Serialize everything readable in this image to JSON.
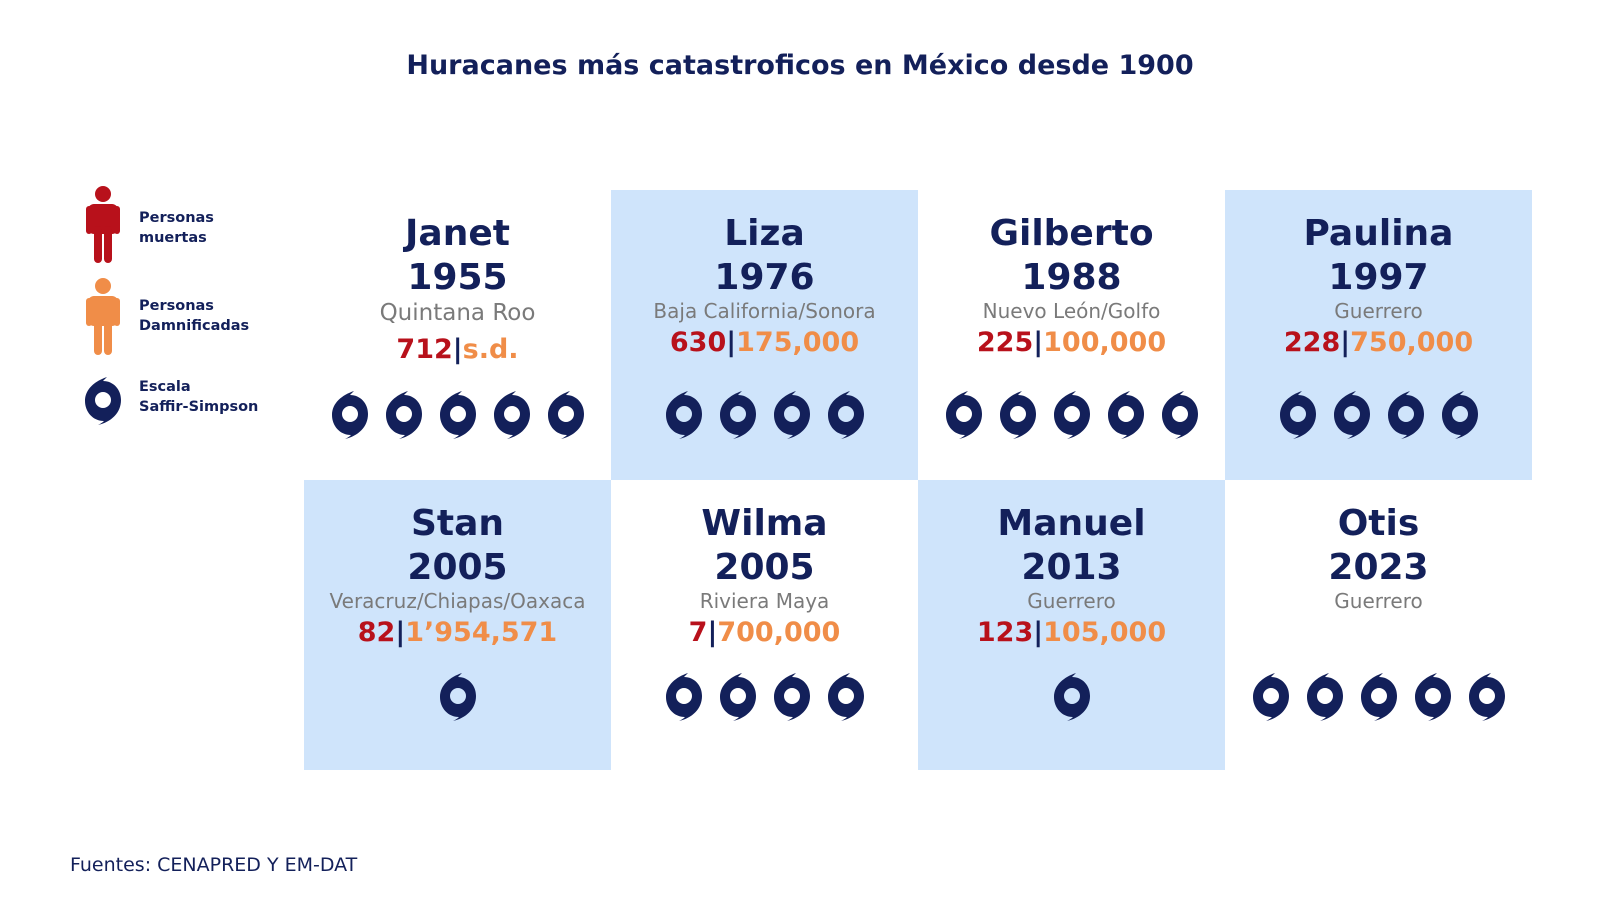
{
  "title": "Huracanes más catastroficos en México desde 1900",
  "legend": {
    "deaths_label": [
      "Personas",
      "muertas"
    ],
    "affected_label": [
      "Personas",
      "Damnificadas"
    ],
    "scale_label": [
      "Escala",
      "Saffir-Simpson"
    ]
  },
  "colors": {
    "navy": "#13205a",
    "deaths": "#b8111b",
    "affected": "#f08d48",
    "shade": "#cfe4fb",
    "place": "#7a7a7a"
  },
  "hurricanes": [
    {
      "name": "Janet",
      "year": "1955",
      "place": "Quintana Roo",
      "deaths": "712",
      "separator": "|",
      "affected": "s.d.",
      "category": 5,
      "shaded": false
    },
    {
      "name": "Liza",
      "year": "1976",
      "place": "Baja California/Sonora",
      "deaths": "630",
      "separator": "|",
      "affected": "175,000",
      "category": 4,
      "shaded": true
    },
    {
      "name": "Gilberto",
      "year": "1988",
      "place": "Nuevo León/Golfo",
      "deaths": "225",
      "separator": "|",
      "affected": "100,000",
      "category": 5,
      "shaded": false
    },
    {
      "name": "Paulina",
      "year": "1997",
      "place": "Guerrero",
      "deaths": "228",
      "separator": "|",
      "affected": "750,000",
      "category": 4,
      "shaded": true
    },
    {
      "name": "Stan",
      "year": "2005",
      "place": "Veracruz/Chiapas/Oaxaca",
      "deaths": "82",
      "separator": "|",
      "affected": "1’954,571",
      "category": 1,
      "shaded": true
    },
    {
      "name": "Wilma",
      "year": "2005",
      "place": "Riviera Maya",
      "deaths": "7",
      "separator": "|",
      "affected": "700,000",
      "category": 4,
      "shaded": false
    },
    {
      "name": "Manuel",
      "year": "2013",
      "place": "Guerrero",
      "deaths": "123",
      "separator": "|",
      "affected": "105,000",
      "category": 1,
      "shaded": true
    },
    {
      "name": "Otis",
      "year": "2023",
      "place": "Guerrero",
      "deaths": "",
      "separator": "",
      "affected": "",
      "category": 5,
      "shaded": false
    }
  ],
  "source": "Fuentes: CENAPRED Y EM-DAT"
}
